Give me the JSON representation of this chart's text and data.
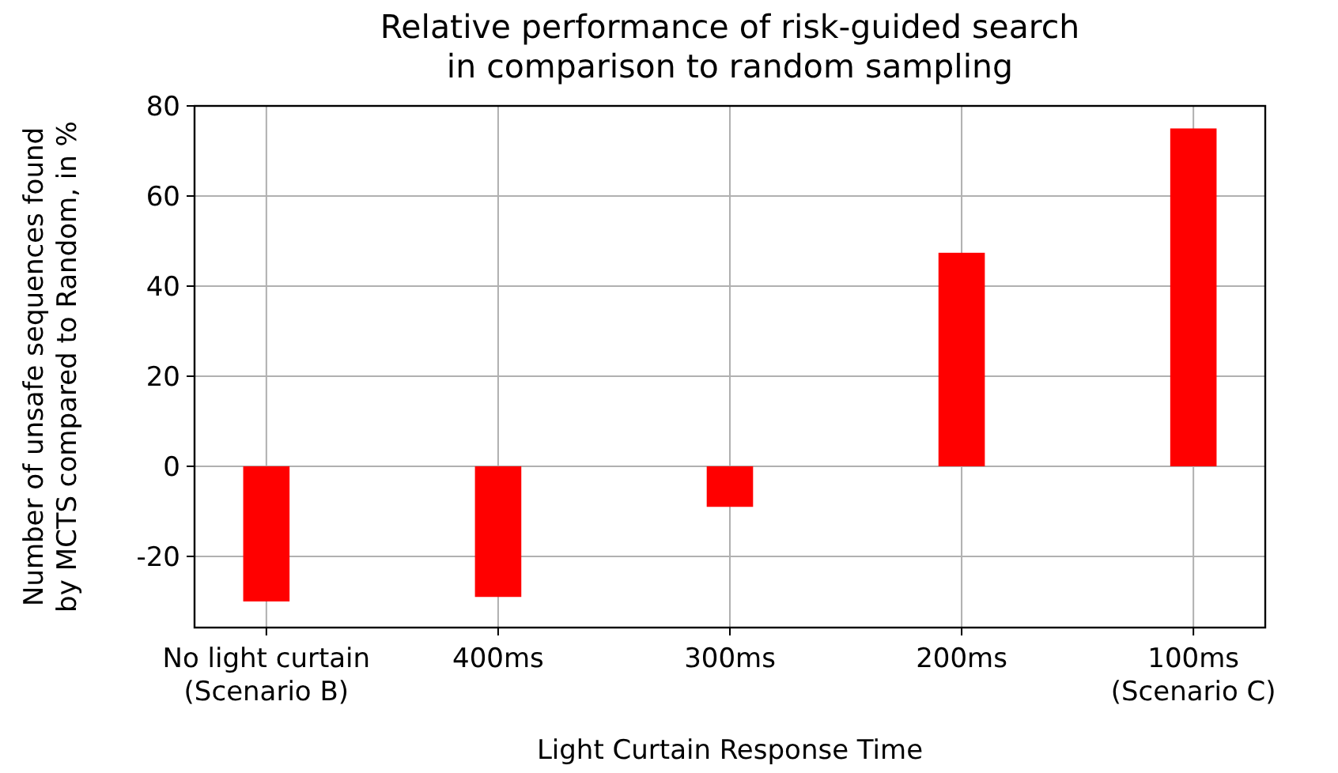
{
  "chart_data": {
    "type": "bar",
    "title": "Relative performance of risk-guided search\nin comparison to random sampling",
    "xlabel": "Light Curtain Response Time",
    "ylabel": "Number of unsafe sequences found\nby MCTS compared to Random, in %",
    "categories": [
      "No light curtain\n(Scenario B)",
      "400ms",
      "300ms",
      "200ms",
      "100ms\n(Scenario C)"
    ],
    "values": [
      -30,
      -29,
      -9,
      47.4,
      75
    ],
    "color": "#ff0000",
    "ylim": [
      -35.8,
      80
    ],
    "yticks": [
      -20,
      0,
      20,
      40,
      60,
      80
    ],
    "grid": true
  }
}
